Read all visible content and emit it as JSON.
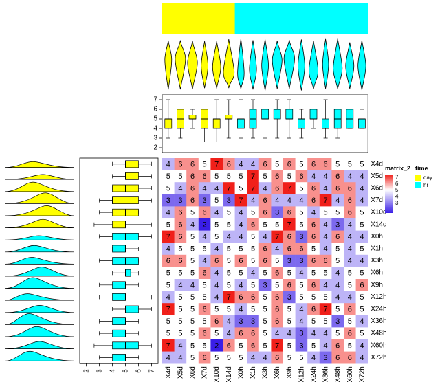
{
  "chart_data": {
    "type": "heatmap",
    "columns": [
      "X4d",
      "X5d",
      "X6d",
      "X7d",
      "X10d",
      "X14d",
      "X0h",
      "X1h",
      "X3h",
      "X6h",
      "X9h",
      "X12h",
      "X24h",
      "X36h",
      "X48h",
      "X60h",
      "X72h"
    ],
    "column_groups": [
      "day",
      "day",
      "day",
      "day",
      "day",
      "day",
      "hr",
      "hr",
      "hr",
      "hr",
      "hr",
      "hr",
      "hr",
      "hr",
      "hr",
      "hr",
      "hr"
    ],
    "rows": [
      "X4d",
      "X5d",
      "X6d",
      "X7d",
      "X10d",
      "X14d",
      "X0h",
      "X1h",
      "X3h",
      "X6h",
      "X9h",
      "X12h",
      "X24h",
      "X36h",
      "X48h",
      "X60h",
      "X72h"
    ],
    "row_groups": [
      "day",
      "day",
      "day",
      "day",
      "day",
      "day",
      "hr",
      "hr",
      "hr",
      "hr",
      "hr",
      "hr",
      "hr",
      "hr",
      "hr",
      "hr",
      "hr"
    ],
    "values": [
      [
        4,
        6,
        6,
        5,
        7,
        6,
        4,
        4,
        6,
        5,
        6,
        5,
        6,
        6,
        5,
        5,
        5
      ],
      [
        5,
        5,
        6,
        6,
        5,
        5,
        5,
        7,
        5,
        6,
        5,
        6,
        4,
        4,
        6,
        4,
        4
      ],
      [
        5,
        4,
        6,
        4,
        4,
        7,
        5,
        7,
        4,
        6,
        7,
        5,
        6,
        4,
        6,
        6,
        4
      ],
      [
        3,
        3,
        6,
        3,
        5,
        3,
        7,
        4,
        6,
        4,
        4,
        4,
        6,
        7,
        4,
        6,
        4
      ],
      [
        4,
        6,
        5,
        6,
        4,
        5,
        4,
        5,
        6,
        3,
        6,
        5,
        4,
        5,
        5,
        6,
        5
      ],
      [
        5,
        6,
        4,
        2,
        5,
        5,
        4,
        6,
        5,
        5,
        7,
        5,
        6,
        4,
        3,
        4,
        5
      ],
      [
        7,
        6,
        5,
        4,
        5,
        4,
        4,
        5,
        4,
        7,
        6,
        3,
        6,
        4,
        6,
        4,
        4
      ],
      [
        4,
        5,
        5,
        5,
        4,
        5,
        5,
        5,
        6,
        4,
        6,
        6,
        5,
        4,
        5,
        4,
        5
      ],
      [
        6,
        6,
        5,
        4,
        6,
        5,
        6,
        5,
        6,
        5,
        3,
        3,
        6,
        6,
        5,
        4,
        4
      ],
      [
        5,
        5,
        5,
        6,
        4,
        5,
        5,
        4,
        5,
        6,
        5,
        4,
        5,
        5,
        4,
        5,
        5
      ],
      [
        5,
        4,
        4,
        5,
        4,
        5,
        4,
        5,
        3,
        5,
        6,
        5,
        6,
        4,
        4,
        5,
        6
      ],
      [
        4,
        5,
        5,
        5,
        4,
        7,
        6,
        6,
        5,
        6,
        3,
        5,
        5,
        5,
        4,
        4,
        5
      ],
      [
        7,
        5,
        5,
        6,
        5,
        5,
        4,
        5,
        5,
        6,
        5,
        4,
        6,
        7,
        5,
        6,
        5
      ],
      [
        5,
        5,
        5,
        5,
        6,
        4,
        3,
        3,
        5,
        6,
        5,
        4,
        5,
        5,
        3,
        5,
        4
      ],
      [
        5,
        5,
        5,
        6,
        5,
        4,
        6,
        6,
        5,
        4,
        4,
        3,
        4,
        4,
        5,
        6,
        5
      ],
      [
        7,
        4,
        5,
        5,
        2,
        6,
        5,
        6,
        5,
        7,
        5,
        3,
        5,
        4,
        6,
        5,
        4
      ],
      [
        4,
        4,
        5,
        6,
        5,
        5,
        5,
        4,
        4,
        6,
        5,
        5,
        4,
        3,
        6,
        6,
        4
      ]
    ],
    "color_scale": {
      "min": 2,
      "mid": 5,
      "max": 7,
      "low_color": "#3a1ee6",
      "mid_color": "#ffffff",
      "high_color": "#f0201a"
    },
    "top_axis_ticks": [
      "2",
      "3",
      "4",
      "5",
      "6",
      "7"
    ],
    "left_axis_ticks": [
      "2",
      "3",
      "4",
      "5",
      "6",
      "7"
    ],
    "legend": {
      "matrix_title": "matrix_2",
      "matrix_ticks": [
        "7",
        "6",
        "5",
        "4",
        "3"
      ],
      "annotation_title": "time",
      "annotation_entries": [
        {
          "label": "day",
          "color": "#ffff00"
        },
        {
          "label": "hr",
          "color": "#00ffff"
        }
      ]
    },
    "colors": {
      "day": "#ffff00",
      "hr": "#00ffff"
    }
  }
}
